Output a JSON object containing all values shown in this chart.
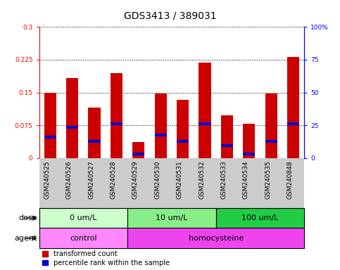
{
  "title": "GDS3413 / 389031",
  "samples": [
    "GSM240525",
    "GSM240526",
    "GSM240527",
    "GSM240528",
    "GSM240529",
    "GSM240530",
    "GSM240531",
    "GSM240532",
    "GSM240533",
    "GSM240534",
    "GSM240535",
    "GSM240848"
  ],
  "red_values": [
    0.15,
    0.183,
    0.115,
    0.195,
    0.037,
    0.147,
    0.133,
    0.218,
    0.098,
    0.078,
    0.148,
    0.232
  ],
  "blue_values": [
    0.048,
    0.07,
    0.038,
    0.078,
    0.009,
    0.052,
    0.038,
    0.078,
    0.028,
    0.009,
    0.038,
    0.078
  ],
  "blue_thickness": 0.006,
  "ylim_left": [
    0,
    0.3
  ],
  "ylim_right": [
    0,
    100
  ],
  "yticks_left": [
    0,
    0.075,
    0.15,
    0.225,
    0.3
  ],
  "ytick_labels_left": [
    "0",
    "0.075",
    "0.15",
    "0.225",
    "0.3"
  ],
  "yticks_right": [
    0,
    25,
    50,
    75,
    100
  ],
  "ytick_labels_right": [
    "0",
    "25",
    "50",
    "75",
    "100%"
  ],
  "dose_groups": [
    {
      "label": "0 um/L",
      "start": 0,
      "end": 4,
      "color": "#ccffcc"
    },
    {
      "label": "10 um/L",
      "start": 4,
      "end": 8,
      "color": "#88ee88"
    },
    {
      "label": "100 um/L",
      "start": 8,
      "end": 12,
      "color": "#22cc44"
    }
  ],
  "agent_groups": [
    {
      "label": "control",
      "start": 0,
      "end": 4,
      "color": "#ff88ff"
    },
    {
      "label": "homocysteine",
      "start": 4,
      "end": 12,
      "color": "#ee44ee"
    }
  ],
  "dose_label": "dose",
  "agent_label": "agent",
  "legend_red": "transformed count",
  "legend_blue": "percentile rank within the sample",
  "bar_color_red": "#cc0000",
  "bar_color_blue": "#0000cc",
  "title_fontsize": 10,
  "tick_fontsize": 6.5,
  "label_fontsize": 8,
  "band_fontsize": 8,
  "legend_fontsize": 7,
  "bar_width": 0.55,
  "background_color": "#ffffff",
  "xtick_bg": "#cccccc"
}
